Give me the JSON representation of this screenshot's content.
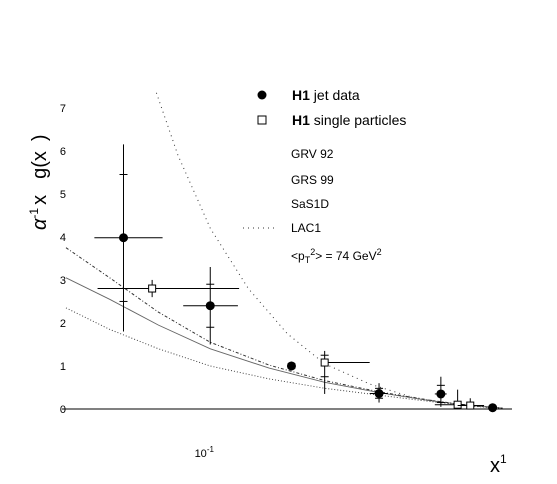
{
  "chart_data": {
    "type": "scatter",
    "title": "",
    "ylabel": "α⁻¹ x_γ g(x_γ)",
    "ylabel_parts": {
      "alpha": "α",
      "alpha_sup": "-1",
      "x_part": "x",
      "rest": "g(x",
      "close": ")"
    },
    "xlabel": {
      "main": "x",
      "sup": "1"
    },
    "x_scale": "log",
    "xlim": [
      0.036,
      0.8
    ],
    "ylim": [
      0,
      7.6
    ],
    "yticks": [
      {
        "v": 0,
        "label": "0"
      },
      {
        "v": 1,
        "label": "1"
      },
      {
        "v": 2,
        "label": "2"
      },
      {
        "v": 3,
        "label": "3"
      },
      {
        "v": 4,
        "label": "4"
      },
      {
        "v": 5,
        "label": "5"
      },
      {
        "v": 6,
        "label": "6"
      },
      {
        "v": 7,
        "label": "7"
      }
    ],
    "xticks": [
      {
        "v": 0.1,
        "base": "10",
        "exp": "-1"
      }
    ],
    "series": [
      {
        "name": "H1 jet data",
        "marker": "filled-circle",
        "points": [
          {
            "x": 0.055,
            "y": 3.98,
            "xerr": [
              0.045,
              0.072
            ],
            "yerr": [
              1.8,
              6.15
            ],
            "yerr_inner": [
              2.5,
              5.45
            ]
          },
          {
            "x": 0.1,
            "y": 2.4,
            "xerr": [
              0.083,
              0.121
            ],
            "yerr": [
              1.5,
              3.3
            ],
            "yerr_inner": [
              1.9,
              2.9
            ]
          },
          {
            "x": 0.175,
            "y": 1.0,
            "xerr": [
              0.17,
              0.18
            ],
            "yerr": [
              0.9,
              1.1
            ],
            "yerr_inner": [
              0.95,
              1.05
            ]
          },
          {
            "x": 0.32,
            "y": 0.36,
            "xerr": [
              0.3,
              0.34
            ],
            "yerr": [
              0.15,
              0.6
            ],
            "yerr_inner": [
              0.25,
              0.48
            ]
          },
          {
            "x": 0.49,
            "y": 0.35,
            "xerr": [
              0.47,
              0.51
            ],
            "yerr": [
              0.05,
              0.75
            ],
            "yerr_inner": [
              0.15,
              0.55
            ]
          },
          {
            "x": 0.7,
            "y": 0.03,
            "xerr": [
              0.68,
              0.72
            ],
            "yerr": [
              0.0,
              0.08
            ],
            "yerr_inner": [
              0.0,
              0.06
            ]
          }
        ]
      },
      {
        "name": "H1 single particles",
        "marker": "open-square",
        "points": [
          {
            "x": 0.067,
            "y": 2.8,
            "xerr": [
              0.046,
              0.122
            ],
            "yerr": [
              2.6,
              3.0
            ]
          },
          {
            "x": 0.22,
            "y": 1.08,
            "xerr": [
              0.22,
              0.3
            ],
            "yerr": [
              0.35,
              1.35
            ],
            "yerr_inner": [
              0.75,
              1.25
            ]
          },
          {
            "x": 0.55,
            "y": 0.1,
            "xerr": [
              0.47,
              0.58
            ],
            "yerr": [
              0.0,
              0.45
            ]
          },
          {
            "x": 0.6,
            "y": 0.08,
            "xerr": [
              0.55,
              0.66
            ],
            "yerr": [
              0.0,
              0.25
            ]
          }
        ]
      }
    ],
    "curves": [
      {
        "name": "GRV 92",
        "style": "thin-solid",
        "points": [
          [
            0.037,
            3.05
          ],
          [
            0.05,
            2.55
          ],
          [
            0.07,
            1.95
          ],
          [
            0.1,
            1.4
          ],
          [
            0.15,
            0.95
          ],
          [
            0.22,
            0.62
          ],
          [
            0.32,
            0.38
          ],
          [
            0.45,
            0.2
          ],
          [
            0.6,
            0.08
          ],
          [
            0.75,
            0.02
          ]
        ]
      },
      {
        "name": "GRS 99",
        "style": "dotted",
        "points": [
          [
            0.037,
            2.35
          ],
          [
            0.05,
            1.85
          ],
          [
            0.07,
            1.4
          ],
          [
            0.1,
            1.0
          ],
          [
            0.15,
            0.7
          ],
          [
            0.22,
            0.48
          ],
          [
            0.32,
            0.32
          ],
          [
            0.45,
            0.18
          ],
          [
            0.6,
            0.07
          ],
          [
            0.75,
            0.01
          ]
        ]
      },
      {
        "name": "SaS1D",
        "style": "dash-dot",
        "points": [
          [
            0.037,
            3.75
          ],
          [
            0.05,
            3.05
          ],
          [
            0.07,
            2.25
          ],
          [
            0.1,
            1.55
          ],
          [
            0.15,
            1.02
          ],
          [
            0.22,
            0.66
          ],
          [
            0.32,
            0.4
          ],
          [
            0.45,
            0.21
          ],
          [
            0.6,
            0.08
          ],
          [
            0.75,
            0.02
          ]
        ]
      },
      {
        "name": "LAC1",
        "style": "sparse-dotted",
        "points": [
          [
            0.069,
            7.35
          ],
          [
            0.08,
            5.9
          ],
          [
            0.1,
            4.2
          ],
          [
            0.13,
            2.8
          ],
          [
            0.17,
            1.75
          ],
          [
            0.22,
            1.05
          ],
          [
            0.3,
            0.58
          ],
          [
            0.4,
            0.28
          ],
          [
            0.55,
            0.1
          ],
          [
            0.75,
            0.02
          ]
        ]
      }
    ],
    "legend": {
      "position": "top-right",
      "entries": [
        {
          "bold": "H1",
          "rest": " jet data",
          "marker": "filled-circle"
        },
        {
          "bold": "H1",
          "rest": " single particles",
          "marker": "open-square"
        },
        {
          "text": "GRV 92",
          "line": "none"
        },
        {
          "text": "GRS 99",
          "line": "none"
        },
        {
          "text": "SaS1D",
          "line": "none"
        },
        {
          "text": "LAC1",
          "line": "dotted"
        },
        {
          "pt_prefix": "<p",
          "pt_sub": "T",
          "pt_sup": "2",
          "pt_mid": "> = 74 GeV",
          "pt_end_sup": "2",
          "line": "none"
        }
      ]
    }
  }
}
